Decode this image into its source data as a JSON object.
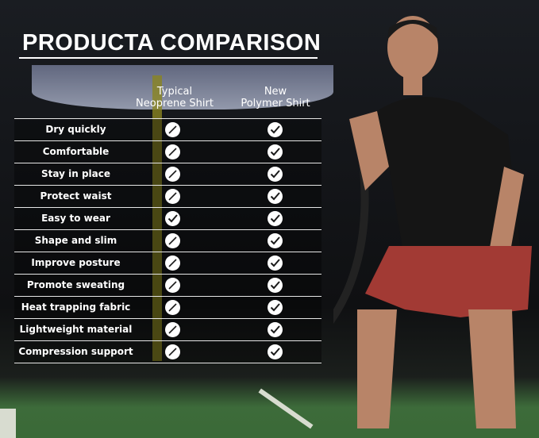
{
  "title": "PRODUCTA COMPARISON",
  "columns": [
    "Typical\nNeoprene Shirt",
    "New\nPolymer Shirt"
  ],
  "column_lines": [
    [
      "Typical",
      "Neoprene Shirt"
    ],
    [
      "New",
      "Polymer Shirt"
    ]
  ],
  "rows": [
    {
      "feature": "Dry quickly",
      "typical": "slash",
      "new": "check"
    },
    {
      "feature": "Comfortable",
      "typical": "slash",
      "new": "check"
    },
    {
      "feature": "Stay in place",
      "typical": "slash",
      "new": "check"
    },
    {
      "feature": "Protect waist",
      "typical": "slash",
      "new": "check"
    },
    {
      "feature": "Easy to wear",
      "typical": "check",
      "new": "check"
    },
    {
      "feature": "Shape and slim",
      "typical": "slash",
      "new": "check"
    },
    {
      "feature": "Improve posture",
      "typical": "slash",
      "new": "check"
    },
    {
      "feature": "Promote sweating",
      "typical": "slash",
      "new": "check"
    },
    {
      "feature": "Heat trapping fabric",
      "typical": "slash",
      "new": "check"
    },
    {
      "feature": "Lightweight material",
      "typical": "slash",
      "new": "check"
    },
    {
      "feature": "Compression support",
      "typical": "slash",
      "new": "check"
    }
  ],
  "colors": {
    "text": "#ffffff",
    "icon_bg": "#ffffff",
    "icon_mark": "#1a1a1a",
    "turf": "#3a6a37"
  }
}
